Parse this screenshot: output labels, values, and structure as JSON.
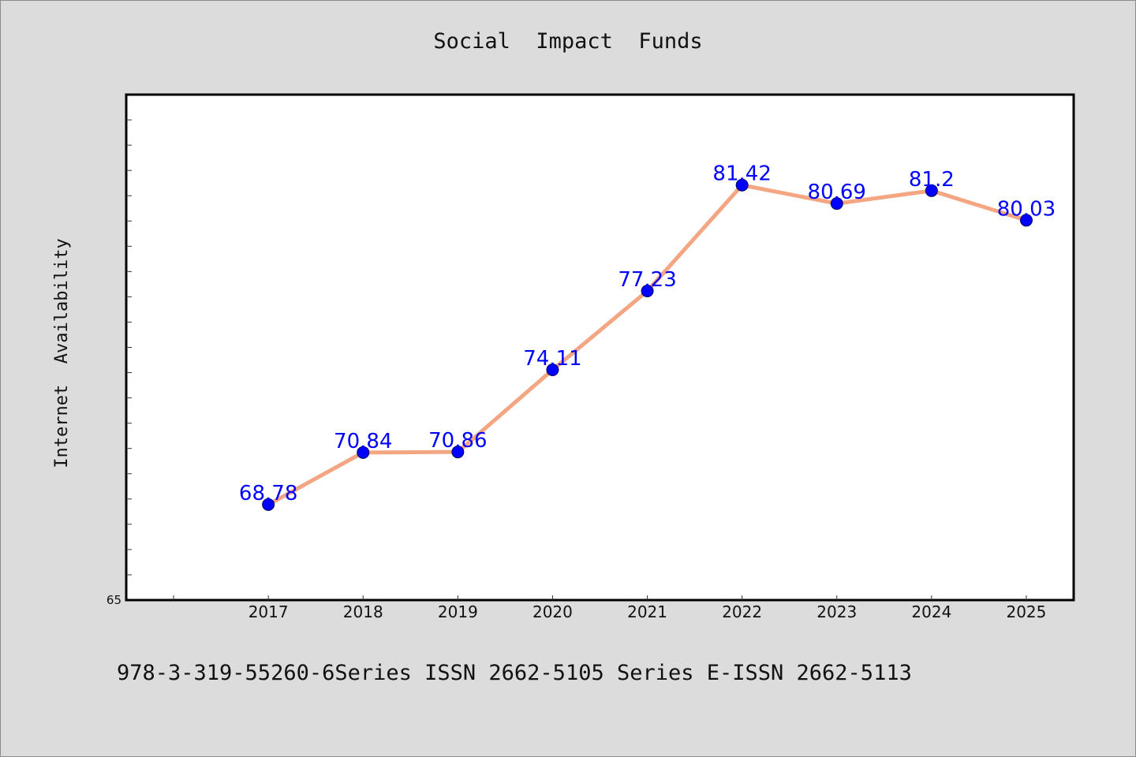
{
  "chart_data": {
    "type": "line",
    "title": "Social  Impact  Funds",
    "xlabel": "",
    "ylabel": "Internet  Availability",
    "categories": [
      "2017",
      "2018",
      "2019",
      "2020",
      "2021",
      "2022",
      "2023",
      "2024",
      "2025"
    ],
    "series": [
      {
        "values": [
          68.78,
          70.84,
          70.86,
          74.11,
          77.23,
          81.42,
          80.69,
          81.2,
          80.03
        ],
        "labels": [
          "68.78",
          "70.84",
          "70.86",
          "74.11",
          "77.23",
          "81.42",
          "80.69",
          "81.2",
          "80.03"
        ],
        "line_color": "#f4a582",
        "marker_color": "#0000ff"
      }
    ],
    "y_tick_labels": [
      "65"
    ],
    "ylim": [
      65,
      85
    ],
    "x_categories_range": [
      -1.5,
      8.5
    ],
    "grid": false,
    "legend": "none"
  },
  "footer": {
    "text": "978-3-319-55260-6Series ISSN 2662-5105 Series E-ISSN 2662-5113"
  }
}
